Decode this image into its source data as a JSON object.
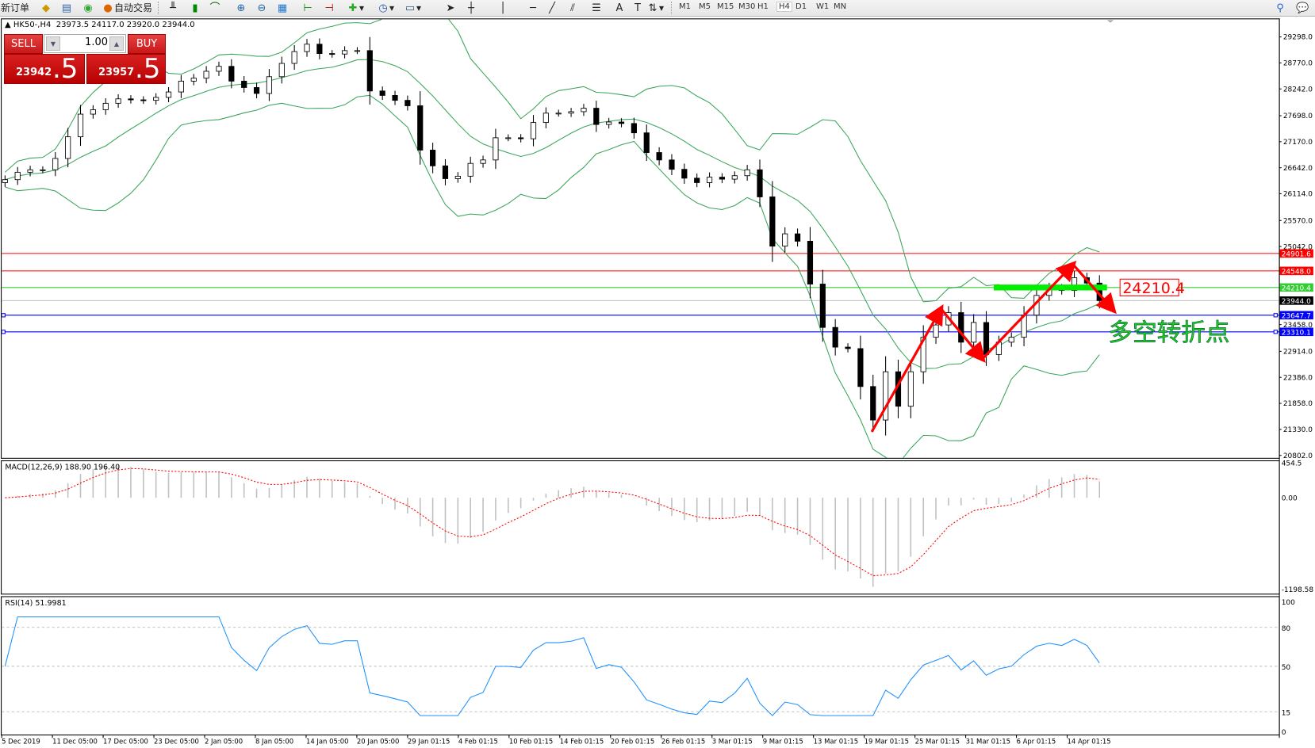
{
  "toolbar": {
    "new_order": "新订单",
    "auto_trading": "自动交易",
    "icons": [
      "history-center-icon",
      "market-watch-icon",
      "signals-icon",
      "auto-trading-icon",
      "bar-chart-icon",
      "candlestick-icon",
      "line-chart-icon",
      "zoom-in-icon",
      "zoom-out-icon",
      "tile-windows-icon",
      "chart-shift-icon",
      "autoscroll-icon",
      "indicators-icon",
      "periods-icon",
      "templates-icon",
      "cursor-icon",
      "crosshair-icon",
      "vertical-line-icon",
      "horizontal-line-icon",
      "trendline-icon",
      "equidistant-channel-icon",
      "fibonacci-icon",
      "text-icon",
      "text-label-icon",
      "arrows-icon",
      "search-icon",
      "chat-icon"
    ],
    "timeframes": [
      "M1",
      "M5",
      "M15",
      "M30",
      "H1",
      "H4",
      "D1",
      "W1",
      "MN"
    ],
    "active_timeframe": "H4"
  },
  "chart_header": {
    "symbol": "HK50-,H4",
    "ohlc": "23973.5 24117.0 23920.0 23944.0"
  },
  "trade_panel": {
    "sell_label": "SELL",
    "buy_label": "BUY",
    "lot": "1.00",
    "sell_main": "23942",
    "sell_last": ".5",
    "buy_main": "23957",
    "buy_last": ".5"
  },
  "price_axis": [
    "29298.0",
    "28770.0",
    "28242.0",
    "27698.0",
    "27170.0",
    "26642.0",
    "26114.0",
    "25570.0",
    "25042.0",
    "23458.0",
    "22914.0",
    "22386.0",
    "21858.0",
    "21330.0",
    "20802.0"
  ],
  "price_lines": [
    {
      "value": 24901.6,
      "label": "24901.6",
      "color": "#ff0000"
    },
    {
      "value": 24548.0,
      "label": "24548.0",
      "color": "#ff0000"
    },
    {
      "value": 24210.4,
      "label": "24210.4",
      "color": "#33cc33"
    },
    {
      "value": 23944.0,
      "label": "23944.0",
      "color": "#000000",
      "line": "#c0c0c0"
    },
    {
      "value": 23647.7,
      "label": "23647.7",
      "color": "#0000ff"
    },
    {
      "value": 23310.1,
      "label": "23310.1",
      "color": "#0000ff"
    }
  ],
  "closes": [
    26400,
    26550,
    26600,
    26600,
    26830,
    27270,
    27730,
    27820,
    27950,
    28040,
    28020,
    28010,
    28070,
    28180,
    28400,
    28460,
    28600,
    28700,
    28400,
    28270,
    28150,
    28490,
    28760,
    29000,
    29150,
    28960,
    28950,
    29020,
    29020,
    28200,
    28110,
    28010,
    27900,
    27000,
    26680,
    26420,
    26470,
    26730,
    26800,
    27250,
    27250,
    27230,
    27560,
    27750,
    27750,
    27780,
    27850,
    27520,
    27570,
    27540,
    27350,
    26950,
    26800,
    26610,
    26430,
    26340,
    26450,
    26410,
    26480,
    26600,
    26050,
    25050,
    25300,
    25150,
    24280,
    23400,
    23000,
    22970,
    22200,
    21520,
    22500,
    21800,
    22500,
    23200,
    23450,
    23700,
    23100,
    23500,
    22850,
    23100,
    23200,
    23650,
    24050,
    24200,
    24150,
    24410,
    24300,
    23944
  ],
  "annotations": {
    "zigzag": [
      [
        68.9,
        21280
      ],
      [
        74.4,
        23780
      ],
      [
        77.7,
        22760
      ],
      [
        84.9,
        24680
      ],
      [
        88.1,
        23750
      ]
    ],
    "zigzag_color": "#ff0000",
    "level_bar": {
      "from": 78.6,
      "to": 87.6,
      "value": 24210.4,
      "color": "#00ee00"
    },
    "level_label": {
      "text": "24210.4",
      "at": 88.7,
      "value": 24210.4
    },
    "note": {
      "text": "多空转折点",
      "at": 87.7,
      "value": 23130,
      "color": "#22cc22"
    }
  },
  "macd": {
    "label": "MACD(12,26,9) 188.90 196.40",
    "axis": [
      "454.5",
      "0.00",
      "-1198.58"
    ],
    "range": [
      -1198.58,
      454.5
    ]
  },
  "rsi": {
    "label": "RSI(14) 51.9981",
    "axis": [
      "100",
      "80",
      "50",
      "15",
      "0"
    ],
    "levels": [
      80,
      50,
      15
    ]
  },
  "time_axis": [
    "5 Dec 2019",
    "11 Dec 05:00",
    "17 Dec 05:00",
    "23 Dec 05:00",
    "2 Jan 05:00",
    "8 Jan 05:00",
    "14 Jan 05:00",
    "20 Jan 05:00",
    "29 Jan 01:15",
    "4 Feb 01:15",
    "10 Feb 01:15",
    "14 Feb 01:15",
    "20 Feb 01:15",
    "26 Feb 01:15",
    "3 Mar 01:15",
    "9 Mar 01:15",
    "13 Mar 01:15",
    "19 Mar 01:15",
    "25 Mar 01:15",
    "31 Mar 01:15",
    "6 Apr 01:15",
    "14 Apr 01:15"
  ],
  "colors": {
    "bands": "#3aa55a",
    "macd_hist": "#c0c0c0",
    "macd_signal": "#ff0000",
    "rsi": "#1e90ff"
  }
}
